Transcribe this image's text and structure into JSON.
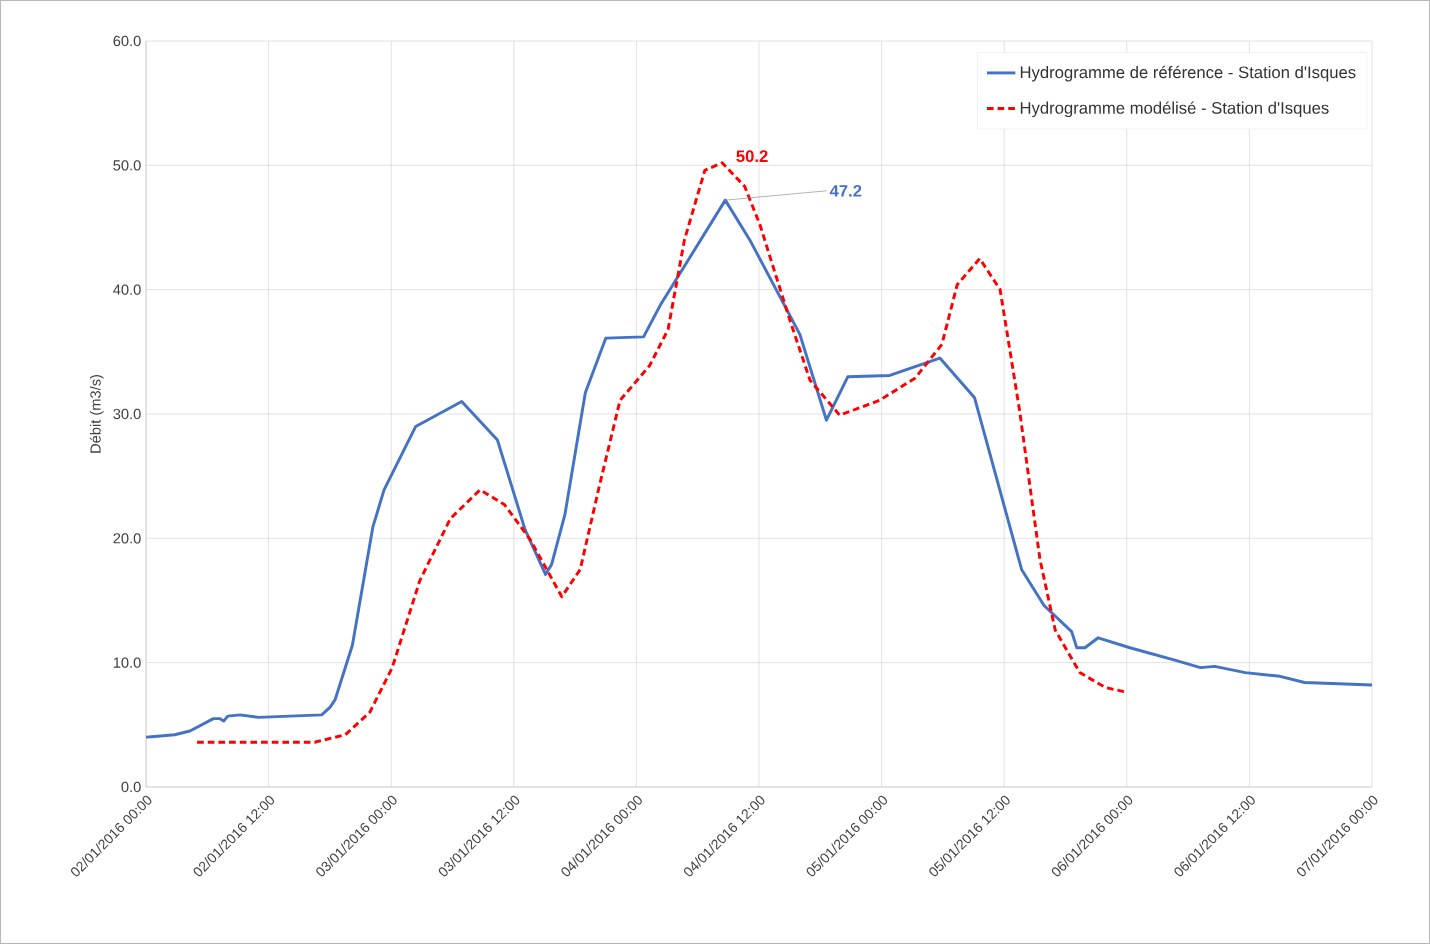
{
  "chart_data": {
    "type": "line",
    "ylabel": "Débit (m3/s)",
    "xlim": [
      "2016-01-02T00:00",
      "2016-01-07T00:00"
    ],
    "xticks": [
      {
        "value": "2016-01-02T00:00",
        "label": "02/01/2016 00:00"
      },
      {
        "value": "2016-01-02T12:00",
        "label": "02/01/2016 12:00"
      },
      {
        "value": "2016-01-03T00:00",
        "label": "03/01/2016 00:00"
      },
      {
        "value": "2016-01-03T12:00",
        "label": "03/01/2016 12:00"
      },
      {
        "value": "2016-01-04T00:00",
        "label": "04/01/2016 00:00"
      },
      {
        "value": "2016-01-04T12:00",
        "label": "04/01/2016 12:00"
      },
      {
        "value": "2016-01-05T00:00",
        "label": "05/01/2016 00:00"
      },
      {
        "value": "2016-01-05T12:00",
        "label": "05/01/2016 12:00"
      },
      {
        "value": "2016-01-06T00:00",
        "label": "06/01/2016 00:00"
      },
      {
        "value": "2016-01-06T12:00",
        "label": "06/01/2016 12:00"
      },
      {
        "value": "2016-01-07T00:00",
        "label": "07/01/2016 00:00"
      }
    ],
    "ylim": [
      0,
      60
    ],
    "yticks": [
      {
        "value": 0,
        "label": "0.0"
      },
      {
        "value": 10,
        "label": "10.0"
      },
      {
        "value": 20,
        "label": "20.0"
      },
      {
        "value": 30,
        "label": "30.0"
      },
      {
        "value": 40,
        "label": "40.0"
      },
      {
        "value": 50,
        "label": "50.0"
      },
      {
        "value": 60,
        "label": "60.0"
      }
    ],
    "grid": true,
    "legend": "top right",
    "marker": "none",
    "series": [
      {
        "name": "Hydrogramme de référence - Station d'Isques",
        "color": "#4472c4",
        "line_style": "solid",
        "x": [
          "2016-01-02T00:00",
          "2016-01-02T02:48",
          "2016-01-02T04:18",
          "2016-01-02T06:36",
          "2016-01-02T07:12",
          "2016-01-02T07:36",
          "2016-01-02T08:00",
          "2016-01-02T09:12",
          "2016-01-02T11:00",
          "2016-01-02T17:12",
          "2016-01-02T18:00",
          "2016-01-02T18:30",
          "2016-01-02T20:12",
          "2016-01-02T22:12",
          "2016-01-02T23:18",
          "2016-01-03T02:24",
          "2016-01-03T06:54",
          "2016-01-03T10:24",
          "2016-01-03T13:06",
          "2016-01-03T15:06",
          "2016-01-03T15:42",
          "2016-01-03T17:00",
          "2016-01-03T19:00",
          "2016-01-03T21:00",
          "2016-01-04T00:42",
          "2016-01-04T02:18",
          "2016-01-04T08:42",
          "2016-01-04T11:06",
          "2016-01-04T16:00",
          "2016-01-04T18:36",
          "2016-01-04T20:42",
          "2016-01-05T00:48",
          "2016-01-05T05:42",
          "2016-01-05T09:06",
          "2016-01-05T13:42",
          "2016-01-05T15:54",
          "2016-01-05T18:36",
          "2016-01-05T19:06",
          "2016-01-05T19:54",
          "2016-01-05T21:12",
          "2016-01-06T00:18",
          "2016-01-06T04:42",
          "2016-01-06T07:12",
          "2016-01-06T08:36",
          "2016-01-06T11:36",
          "2016-01-06T15:00",
          "2016-01-06T17:24",
          "2016-01-07T00:00"
        ],
        "values": [
          4.0,
          4.2,
          4.5,
          5.5,
          5.5,
          5.3,
          5.7,
          5.8,
          5.6,
          5.8,
          6.4,
          7.0,
          11.4,
          20.9,
          23.9,
          29.0,
          31.0,
          27.9,
          20.7,
          17.1,
          17.9,
          21.9,
          31.7,
          36.1,
          36.2,
          38.7,
          47.2,
          44.0,
          36.4,
          29.5,
          33.0,
          33.1,
          34.5,
          31.3,
          17.5,
          14.6,
          12.5,
          11.2,
          11.2,
          12.0,
          11.2,
          10.2,
          9.6,
          9.7,
          9.2,
          8.9,
          8.4,
          8.2
        ]
      },
      {
        "name": "Hydrogramme modélisé - Station d'Isques",
        "color": "#ff0000",
        "line_style": "dashed",
        "x": [
          "2016-01-02T05:00",
          "2016-01-02T16:30",
          "2016-01-02T19:30",
          "2016-01-02T21:54",
          "2016-01-03T00:06",
          "2016-01-03T02:48",
          "2016-01-03T05:48",
          "2016-01-03T08:42",
          "2016-01-03T11:06",
          "2016-01-03T13:36",
          "2016-01-03T16:42",
          "2016-01-03T18:30",
          "2016-01-03T20:24",
          "2016-01-03T22:24",
          "2016-01-04T01:18",
          "2016-01-04T03:06",
          "2016-01-04T04:42",
          "2016-01-04T06:42",
          "2016-01-04T08:24",
          "2016-01-04T10:36",
          "2016-01-04T12:06",
          "2016-01-04T15:00",
          "2016-01-04T17:00",
          "2016-01-04T19:54",
          "2016-01-04T23:48",
          "2016-01-05T03:18",
          "2016-01-05T05:54",
          "2016-01-05T07:24",
          "2016-01-05T09:36",
          "2016-01-05T11:36",
          "2016-01-05T13:30",
          "2016-01-05T15:30",
          "2016-01-05T17:00",
          "2016-01-05T19:24",
          "2016-01-05T21:54",
          "2016-01-06T00:06"
        ],
        "values": [
          3.6,
          3.6,
          4.2,
          6.0,
          9.6,
          16.6,
          21.6,
          23.9,
          22.7,
          19.9,
          15.3,
          17.5,
          24.3,
          31.1,
          33.9,
          36.8,
          44.0,
          49.6,
          50.2,
          48.3,
          45.2,
          37.6,
          32.7,
          29.9,
          31.1,
          32.9,
          35.6,
          40.4,
          42.5,
          40.0,
          30.3,
          18.3,
          12.6,
          9.2,
          8.0,
          7.6
        ]
      }
    ],
    "annotations": [
      {
        "text": "47.2",
        "x": "2016-01-04T08:42",
        "y": 47.2
      },
      {
        "text": "50.2",
        "x": "2016-01-04T08:24",
        "y": 50.2
      }
    ]
  }
}
